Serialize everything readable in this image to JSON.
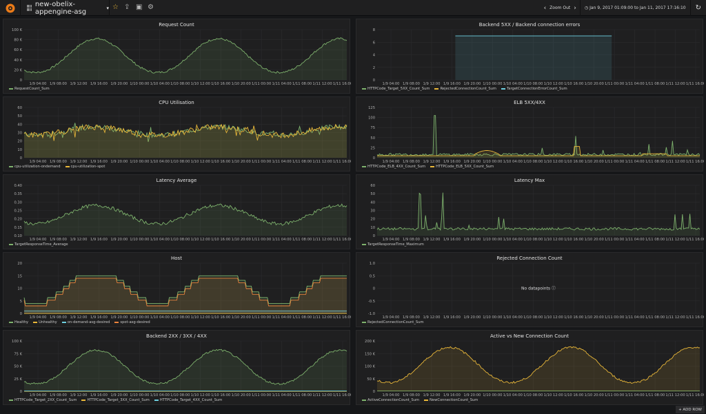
{
  "nav": {
    "dashboard_title": "new-obelix-appengine-asg",
    "zoom_out": "Zoom Out",
    "time_range": "Jan 9, 2017 01:09:00 to Jan 11, 2017 17:16:10"
  },
  "add_row": "+ ADD ROW",
  "colors": {
    "green": "#7eb26d",
    "yellow": "#eab839",
    "blue": "#6ed0e0",
    "orange": "#ef843c"
  },
  "time_ticks": [
    "1/9 04:00",
    "1/9 08:00",
    "1/9 12:00",
    "1/9 16:00",
    "1/9 20:00",
    "1/10 00:00",
    "1/10 04:00",
    "1/10 08:00",
    "1/10 12:00",
    "1/10 16:00",
    "1/10 20:00",
    "1/11 00:00",
    "1/11 04:00",
    "1/11 08:00",
    "1/11 12:00",
    "1/11 16:00"
  ],
  "panels": [
    {
      "title": "Request Count",
      "yticks": [
        "0",
        "20 K",
        "40 K",
        "60 K",
        "80 K",
        "100 K"
      ],
      "ymax": 100,
      "series": [
        {
          "name": "RequestCount_Sum",
          "color": "#7eb26d",
          "shape": "wave",
          "base": 15,
          "amp": 67,
          "noise": 4
        }
      ]
    },
    {
      "title": "Backend 5XX / Backend connection errors",
      "yticks": [
        "0",
        "2",
        "4",
        "6",
        "8"
      ],
      "ymax": 8,
      "series": [
        {
          "name": "HTTPCode_Target_5XX_Count_Sum",
          "color": "#7eb26d",
          "shape": "none"
        },
        {
          "name": "RejectedConnectionCount_Sum",
          "color": "#eab839",
          "shape": "none"
        },
        {
          "name": "TargetConnectionErrorCount_Sum",
          "color": "#6ed0e0",
          "shape": "block",
          "level": 7,
          "start": 0.24,
          "end": 0.73
        }
      ]
    },
    {
      "title": "CPU Utilisation",
      "yticks": [
        "0",
        "10",
        "20",
        "30",
        "40",
        "50",
        "60"
      ],
      "ymax": 60,
      "series": [
        {
          "name": "cpu-utilization-ondemand",
          "color": "#7eb26d",
          "shape": "cpu",
          "base": 32,
          "amp": 12,
          "noise": 6
        },
        {
          "name": "cpu-utilization-spot",
          "color": "#eab839",
          "shape": "cpu",
          "base": 32,
          "amp": 12,
          "noise": 7
        }
      ]
    },
    {
      "title": "ELB 5XX/4XX",
      "yticks": [
        "0",
        "25",
        "50",
        "75",
        "100",
        "125"
      ],
      "ymax": 125,
      "series": [
        {
          "name": "HTTPCode_ELB_4XX_Count_Sum",
          "color": "#7eb26d",
          "shape": "spiky",
          "base": 8,
          "amp": 8,
          "noise": 6
        },
        {
          "name": "HTTPCode_ELB_5XX_Count_Sum",
          "color": "#eab839",
          "shape": "elb5",
          "base": 5
        }
      ]
    },
    {
      "title": "Latency Average",
      "yticks": [
        "0.10",
        "0.15",
        "0.20",
        "0.25",
        "0.30",
        "0.35",
        "0.40"
      ],
      "ymax": 0.4,
      "ymin": 0.1,
      "series": [
        {
          "name": "TargetResponseTime_Average",
          "color": "#7eb26d",
          "shape": "lat",
          "base": 0.17,
          "amp": 0.11,
          "noise": 0.02
        }
      ]
    },
    {
      "title": "Latency Max",
      "yticks": [
        "0",
        "10",
        "20",
        "30",
        "40",
        "50",
        "60"
      ],
      "ymax": 60,
      "series": [
        {
          "name": "TargetResponseTime_Maximum",
          "color": "#7eb26d",
          "shape": "latmax",
          "base": 8,
          "amp": 2,
          "noise": 3
        }
      ]
    },
    {
      "title": "Host",
      "yticks": [
        "0",
        "5",
        "10",
        "15",
        "20"
      ],
      "ymax": 20,
      "series": [
        {
          "name": "Healthy",
          "color": "#7eb26d",
          "shape": "step",
          "lo": 4,
          "hi": 15
        },
        {
          "name": "Unhealthy",
          "color": "#eab839",
          "shape": "flat",
          "level": 0
        },
        {
          "name": "on-demand-asg-desired",
          "color": "#6ed0e0",
          "shape": "flat",
          "level": 1
        },
        {
          "name": "spot-asg-desired",
          "color": "#ef843c",
          "shape": "step",
          "lo": 3,
          "hi": 14
        }
      ]
    },
    {
      "title": "Rejected Connection Count",
      "yticks": [
        "-1.0",
        "-0.5",
        "0",
        "0.5",
        "1.0"
      ],
      "ymax": 1,
      "ymin": -1,
      "nodata": "No datapoints",
      "series": [
        {
          "name": "RejectedConnectionCount_Sum",
          "color": "#7eb26d",
          "shape": "none"
        }
      ]
    },
    {
      "title": "Backend 2XX / 3XX / 4XX",
      "yticks": [
        "0",
        "25 K",
        "50 K",
        "75 K",
        "100 K"
      ],
      "ymax": 100,
      "series": [
        {
          "name": "HTTPCode_Target_2XX_Count_Sum",
          "color": "#7eb26d",
          "shape": "wave",
          "base": 15,
          "amp": 67,
          "noise": 4
        },
        {
          "name": "HTTPCode_Target_3XX_Count_Sum",
          "color": "#eab839",
          "shape": "flat",
          "level": 0
        },
        {
          "name": "HTTPCode_Target_4XX_Count_Sum",
          "color": "#6ed0e0",
          "shape": "flat",
          "level": 0.5
        }
      ]
    },
    {
      "title": "Active vs New Connection Count",
      "yticks": [
        "0",
        "50 K",
        "100 K",
        "150 K",
        "200 K"
      ],
      "ymax": 200,
      "series": [
        {
          "name": "ActiveConnectionCount_Sum",
          "color": "#7eb26d",
          "shape": "flat",
          "level": 1
        },
        {
          "name": "NewConnectionCount_Sum",
          "color": "#eab839",
          "shape": "wave",
          "base": 35,
          "amp": 140,
          "noise": 8
        }
      ]
    }
  ]
}
